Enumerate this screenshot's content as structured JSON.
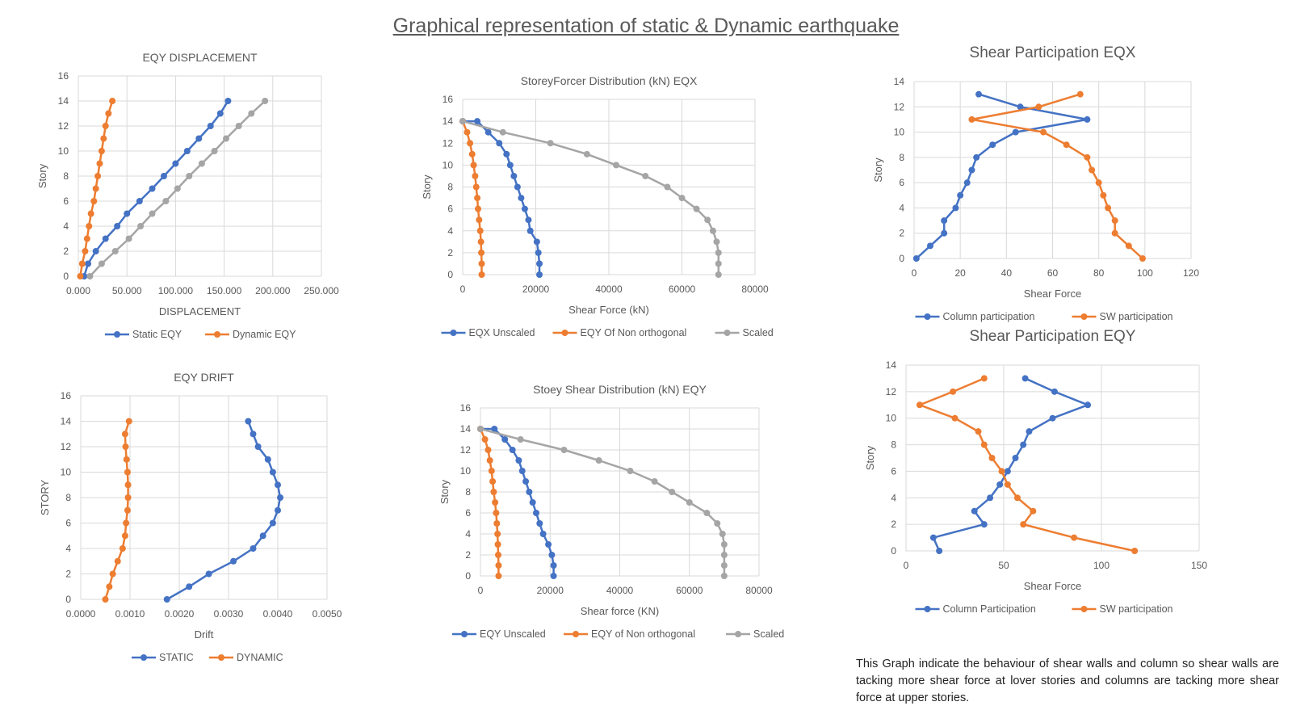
{
  "page_title": "Graphical representation of static & Dynamic earthquake",
  "note": "This Graph indicate the behaviour of shear walls and column so shear walls are tacking more shear force at lover stories and columns are tacking more shear force at upper stories.",
  "chart_data": [
    {
      "id": "eqy-displacement",
      "type": "line",
      "title": "EQY DISPLACEMENT",
      "xlabel": "DISPLACEMENT",
      "ylabel": "Story",
      "xlim": [
        0,
        250
      ],
      "ylim": [
        0,
        16
      ],
      "xticks": [
        0,
        50,
        100,
        150,
        200,
        250
      ],
      "xtick_labels": [
        "0.000",
        "50.000",
        "100.000",
        "150.000",
        "200.000",
        "250.000"
      ],
      "yticks": [
        0,
        2,
        4,
        6,
        8,
        10,
        12,
        14,
        16
      ],
      "ytick_labels": [
        "0",
        "2",
        "4",
        "6",
        "8",
        "10",
        "12",
        "14",
        "16"
      ],
      "grid": true,
      "legend": "bottom",
      "series": [
        {
          "name": "Static EQY",
          "color": "#4472C4",
          "x": [
            6,
            10,
            18,
            28,
            40,
            50,
            63,
            76,
            88,
            100,
            112,
            124,
            136,
            146,
            154
          ],
          "y": [
            0,
            1,
            2,
            3,
            4,
            5,
            6,
            7,
            8,
            9,
            10,
            11,
            12,
            13,
            14
          ]
        },
        {
          "name": "Dynamic EQY",
          "color": "#ED7D31",
          "x": [
            2,
            4,
            7,
            9,
            11,
            13,
            16,
            18,
            20,
            22,
            24,
            26,
            28,
            31,
            35
          ],
          "y": [
            0,
            1,
            2,
            3,
            4,
            5,
            6,
            7,
            8,
            9,
            10,
            11,
            12,
            13,
            14
          ]
        },
        {
          "name": "",
          "color": "#A5A5A5",
          "x": [
            12,
            24,
            38,
            52,
            64,
            76,
            90,
            102,
            114,
            127,
            140,
            152,
            165,
            178,
            192
          ],
          "y": [
            0,
            1,
            2,
            3,
            4,
            5,
            6,
            7,
            8,
            9,
            10,
            11,
            12,
            13,
            14
          ]
        }
      ]
    },
    {
      "id": "eqy-drift",
      "type": "line",
      "title": "EQY DRIFT",
      "xlabel": "Drift",
      "ylabel": "STORY",
      "xlim": [
        0,
        0.005
      ],
      "ylim": [
        0,
        16
      ],
      "xticks": [
        0,
        0.001,
        0.002,
        0.003,
        0.004,
        0.005
      ],
      "xtick_labels": [
        "0.0000",
        "0.0010",
        "0.0020",
        "0.0030",
        "0.0040",
        "0.0050"
      ],
      "yticks": [
        0,
        2,
        4,
        6,
        8,
        10,
        12,
        14,
        16
      ],
      "ytick_labels": [
        "0",
        "2",
        "4",
        "6",
        "8",
        "10",
        "12",
        "14",
        "16"
      ],
      "grid": true,
      "legend": "bottom",
      "series": [
        {
          "name": "STATIC",
          "color": "#4472C4",
          "x": [
            0.00175,
            0.0022,
            0.0026,
            0.0031,
            0.0035,
            0.0037,
            0.0039,
            0.004,
            0.00405,
            0.004,
            0.0039,
            0.0038,
            0.0036,
            0.0035,
            0.0034
          ],
          "y": [
            0,
            1,
            2,
            3,
            4,
            5,
            6,
            7,
            8,
            9,
            10,
            11,
            12,
            13,
            14
          ]
        },
        {
          "name": "DYNAMIC",
          "color": "#ED7D31",
          "x": [
            0.0005,
            0.00058,
            0.00065,
            0.00075,
            0.00085,
            0.0009,
            0.00092,
            0.00095,
            0.00096,
            0.00096,
            0.00095,
            0.00093,
            0.00091,
            0.0009,
            0.00098
          ],
          "y": [
            0,
            1,
            2,
            3,
            4,
            5,
            6,
            7,
            8,
            9,
            10,
            11,
            12,
            13,
            14
          ]
        }
      ]
    },
    {
      "id": "storey-force-eqx",
      "type": "line",
      "title": "StoreyForcer Distribution (kN) EQX",
      "xlabel": "Shear Force (kN)",
      "ylabel": "Story",
      "xlim": [
        0,
        80000
      ],
      "ylim": [
        0,
        16
      ],
      "xticks": [
        0,
        20000,
        40000,
        60000,
        80000
      ],
      "xtick_labels": [
        "0",
        "20000",
        "40000",
        "60000",
        "80000"
      ],
      "yticks": [
        0,
        2,
        4,
        6,
        8,
        10,
        12,
        14,
        16
      ],
      "ytick_labels": [
        "0",
        "2",
        "4",
        "6",
        "8",
        "10",
        "12",
        "14",
        "16"
      ],
      "grid": true,
      "legend": "bottom",
      "series": [
        {
          "name": "EQX Unscaled",
          "color": "#4472C4",
          "x": [
            21000,
            21000,
            20700,
            20300,
            18500,
            18000,
            17000,
            16000,
            15000,
            14000,
            13000,
            12000,
            10000,
            7000,
            4000,
            0
          ],
          "y": [
            0,
            1,
            2,
            3,
            4,
            5,
            6,
            7,
            8,
            9,
            10,
            11,
            12,
            13,
            14,
            14
          ]
        },
        {
          "name": "EQY Of Non orthogonal",
          "color": "#ED7D31",
          "x": [
            5200,
            5200,
            5100,
            5000,
            4800,
            4500,
            4200,
            4000,
            3700,
            3400,
            3000,
            2600,
            2000,
            1200,
            0
          ],
          "y": [
            0,
            1,
            2,
            3,
            4,
            5,
            6,
            7,
            8,
            9,
            10,
            11,
            12,
            13,
            14
          ]
        },
        {
          "name": "Scaled",
          "color": "#A5A5A5",
          "x": [
            70000,
            70000,
            70000,
            69500,
            68500,
            67000,
            64000,
            60000,
            56000,
            50000,
            42000,
            34000,
            24000,
            11000,
            0
          ],
          "y": [
            0,
            1,
            2,
            3,
            4,
            5,
            6,
            7,
            8,
            9,
            10,
            11,
            12,
            13,
            14
          ]
        }
      ]
    },
    {
      "id": "storey-shear-eqy",
      "type": "line",
      "title": "Stoey Shear Distribution (kN) EQY",
      "xlabel": "Shear force (KN)",
      "ylabel": "Story",
      "xlim": [
        0,
        80000
      ],
      "ylim": [
        0,
        16
      ],
      "xticks": [
        0,
        20000,
        40000,
        60000,
        80000
      ],
      "xtick_labels": [
        "0",
        "20000",
        "40000",
        "60000",
        "80000"
      ],
      "yticks": [
        0,
        2,
        4,
        6,
        8,
        10,
        12,
        14,
        16
      ],
      "ytick_labels": [
        "0",
        "2",
        "4",
        "6",
        "8",
        "10",
        "12",
        "14",
        "16"
      ],
      "grid": true,
      "legend": "bottom",
      "series": [
        {
          "name": "EQY Unscaled",
          "color": "#4472C4",
          "x": [
            21000,
            21000,
            20500,
            19500,
            18000,
            17000,
            16000,
            15000,
            14000,
            13000,
            12000,
            11000,
            9200,
            7000,
            4000,
            0
          ],
          "y": [
            0,
            1,
            2,
            3,
            4,
            5,
            6,
            7,
            8,
            9,
            10,
            11,
            12,
            13,
            14,
            14
          ]
        },
        {
          "name": "EQY of Non orthogonal",
          "color": "#ED7D31",
          "x": [
            5200,
            5200,
            5100,
            5000,
            4900,
            4700,
            4500,
            4200,
            3800,
            3500,
            3200,
            2700,
            2200,
            1300,
            0
          ],
          "y": [
            0,
            1,
            2,
            3,
            4,
            5,
            6,
            7,
            8,
            9,
            10,
            11,
            12,
            13,
            14
          ]
        },
        {
          "name": "Scaled",
          "color": "#A5A5A5",
          "x": [
            70000,
            70000,
            70000,
            70000,
            69500,
            68000,
            65000,
            60000,
            55000,
            50000,
            43000,
            34000,
            24000,
            11500,
            0
          ],
          "y": [
            0,
            1,
            2,
            3,
            4,
            5,
            6,
            7,
            8,
            9,
            10,
            11,
            12,
            13,
            14
          ]
        }
      ]
    },
    {
      "id": "shear-participation-eqx",
      "type": "line",
      "title": "Shear Participation EQX",
      "xlabel": "Shear Force",
      "ylabel": "Story",
      "xlim": [
        0,
        120
      ],
      "ylim": [
        0,
        14
      ],
      "xticks": [
        0,
        20,
        40,
        60,
        80,
        100,
        120
      ],
      "xtick_labels": [
        "0",
        "20",
        "40",
        "60",
        "80",
        "100",
        "120"
      ],
      "yticks": [
        0,
        2,
        4,
        6,
        8,
        10,
        12,
        14
      ],
      "ytick_labels": [
        "0",
        "2",
        "4",
        "6",
        "8",
        "10",
        "12",
        "14"
      ],
      "grid": true,
      "legend": "bottom",
      "series": [
        {
          "name": "Column participation",
          "color": "#4472C4",
          "x": [
            1,
            7,
            13,
            13,
            18,
            20,
            23,
            25,
            27,
            34,
            44,
            75,
            46,
            28
          ],
          "y": [
            0,
            1,
            2,
            3,
            4,
            5,
            6,
            7,
            8,
            9,
            10,
            11,
            12,
            13
          ]
        },
        {
          "name": "SW participation",
          "color": "#ED7D31",
          "x": [
            99,
            93,
            87,
            87,
            84,
            82,
            80,
            77,
            75,
            66,
            56,
            25,
            54,
            72
          ],
          "y": [
            0,
            1,
            2,
            3,
            4,
            5,
            6,
            7,
            8,
            9,
            10,
            11,
            12,
            13
          ]
        }
      ]
    },
    {
      "id": "shear-participation-eqy",
      "type": "line",
      "title": "Shear Participation EQY",
      "xlabel": "Shear Force",
      "ylabel": "Story",
      "xlim": [
        0,
        150
      ],
      "ylim": [
        0,
        14
      ],
      "xticks": [
        0,
        50,
        100,
        150
      ],
      "xtick_labels": [
        "0",
        "50",
        "100",
        "150"
      ],
      "yticks": [
        0,
        2,
        4,
        6,
        8,
        10,
        12,
        14
      ],
      "ytick_labels": [
        "0",
        "2",
        "4",
        "6",
        "8",
        "10",
        "12",
        "14"
      ],
      "grid": true,
      "legend": "bottom",
      "series": [
        {
          "name": "Column Participation",
          "color": "#4472C4",
          "x": [
            17,
            14,
            40,
            35,
            43,
            48,
            52,
            56,
            60,
            63,
            75,
            93,
            76,
            61
          ],
          "y": [
            0,
            1,
            2,
            3,
            4,
            5,
            6,
            7,
            8,
            9,
            10,
            11,
            12,
            13
          ]
        },
        {
          "name": "SW participation",
          "color": "#ED7D31",
          "x": [
            117,
            86,
            60,
            65,
            57,
            52,
            49,
            44,
            40,
            37,
            25,
            7,
            24,
            40
          ],
          "y": [
            0,
            1,
            2,
            3,
            4,
            5,
            6,
            7,
            8,
            9,
            10,
            11,
            12,
            13
          ]
        }
      ]
    }
  ]
}
